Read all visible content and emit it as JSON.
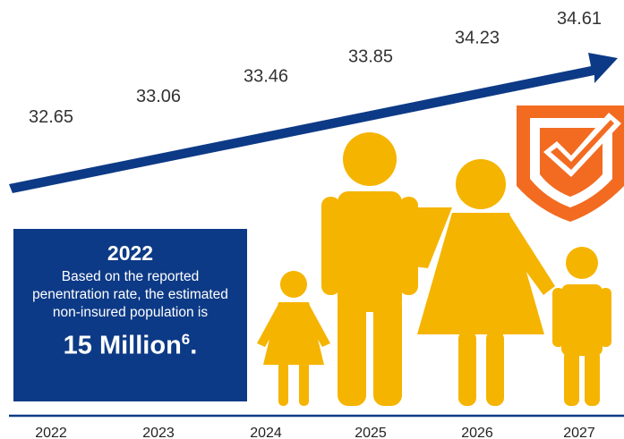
{
  "chart_data": {
    "type": "line",
    "x": [
      "2022",
      "2023",
      "2024",
      "2025",
      "2026",
      "2027"
    ],
    "values": [
      32.65,
      33.06,
      33.46,
      33.85,
      34.23,
      34.61
    ],
    "title": "",
    "xlabel": "",
    "ylabel": "",
    "colors": {
      "arrow": "#0d3a86",
      "people": "#f5b400",
      "shield": "#f26b21",
      "axis": "#0d3a86"
    }
  },
  "info_box": {
    "year": "2022",
    "text": "Based on the reported penentration rate, the estimated non-insured population is",
    "highlight": "15 Million",
    "superscript": "6",
    "suffix": "."
  },
  "icons": [
    "family-icon",
    "shield-check-icon"
  ]
}
